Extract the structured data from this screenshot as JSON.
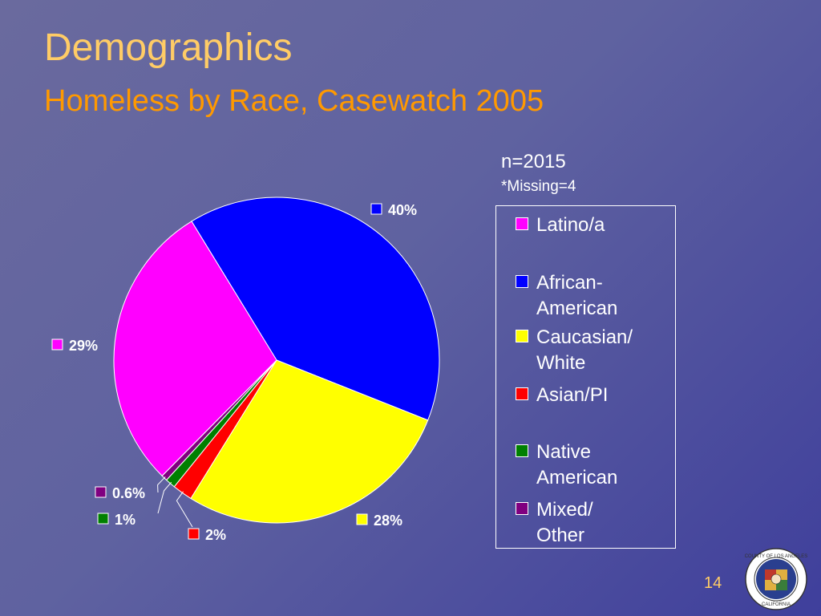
{
  "slide": {
    "title": "Demographics",
    "subtitle": "Homeless by Race, Casewatch 2005",
    "note_n": "n=2015",
    "note_missing": "*Missing=4",
    "page_number": "14",
    "seal_text": "COUNTY OF LOS ANGELES · CALIFORNIA"
  },
  "colors": {
    "title": "#ffcc66",
    "subtitle": "#ff9900",
    "text": "#ffffff"
  },
  "chart_data": {
    "type": "pie",
    "title": "Homeless by Race, Casewatch 2005",
    "legend_position": "right",
    "slices": [
      {
        "name": "Latino/a",
        "legend_label": "Latino/a",
        "value": 29,
        "label": "29%",
        "color": "#ff00ff"
      },
      {
        "name": "African-American",
        "legend_label": "African-\nAmerican",
        "value": 40,
        "label": "40%",
        "color": "#0000ff"
      },
      {
        "name": "Caucasian/White",
        "legend_label": "Caucasian/\nWhite",
        "value": 28,
        "label": "28%",
        "color": "#ffff00"
      },
      {
        "name": "Asian/PI",
        "legend_label": "Asian/PI",
        "value": 2,
        "label": "2%",
        "color": "#ff0000"
      },
      {
        "name": "Native American",
        "legend_label": "Native\nAmerican",
        "value": 1,
        "label": "1%",
        "color": "#008000"
      },
      {
        "name": "Mixed/Other",
        "legend_label": "Mixed/\nOther",
        "value": 0.6,
        "label": "0.6%",
        "color": "#800080"
      }
    ]
  }
}
